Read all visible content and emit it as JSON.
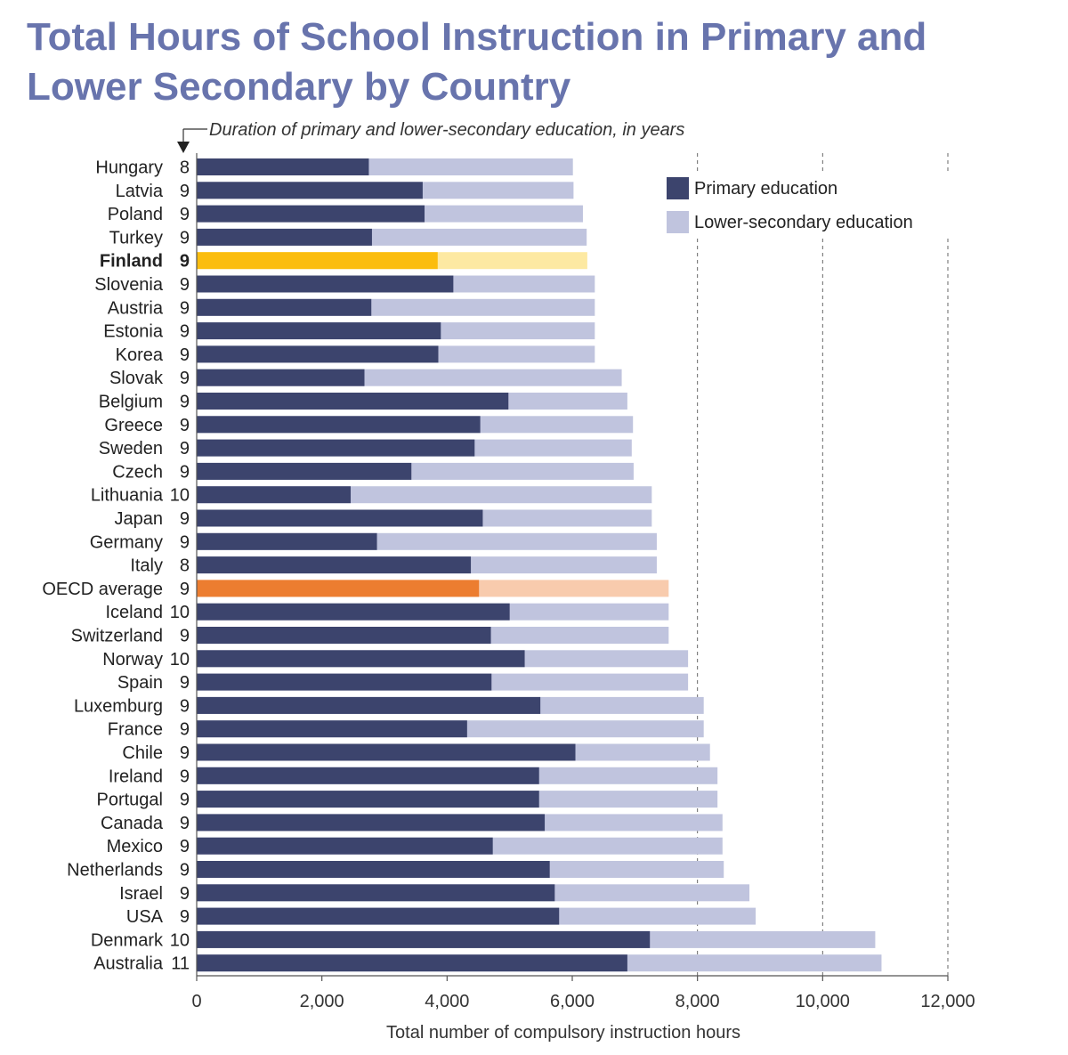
{
  "chart_data": {
    "type": "bar",
    "stacked": true,
    "orientation": "horizontal",
    "title": "Total Hours of School Instruction in Primary and Lower Secondary by Country",
    "subtitle": "Duration of primary and lower-secondary education, in years",
    "xlabel": "Total number of compulsory instruction hours",
    "ylabel": "",
    "xlim": [
      0,
      12000
    ],
    "x_ticks": [
      "0",
      "2,000",
      "4,000",
      "6,000",
      "8,000",
      "10,000",
      "12,000"
    ],
    "x_tick_values": [
      0,
      2000,
      4000,
      6000,
      8000,
      10000,
      12000
    ],
    "grid": "dashed vertical lines at 8,000, 10,000, 12,000",
    "legend_position": "top-right",
    "series": [
      {
        "name": "Primary education",
        "color": "#3c446d"
      },
      {
        "name": "Lower-secondary education",
        "color": "#c0c4de"
      }
    ],
    "highlight_colors": {
      "Finland": {
        "primary": "#fbbd0e",
        "lower_secondary": "#fde9a2"
      },
      "OECD average": {
        "primary": "#ec7d30",
        "lower_secondary": "#f8cbad"
      }
    },
    "categories": [
      {
        "country": "Hungary",
        "years": "8",
        "primary": 2750,
        "total": 6010
      },
      {
        "country": "Latvia",
        "years": "9",
        "primary": 3610,
        "total": 6020
      },
      {
        "country": "Poland",
        "years": "9",
        "primary": 3640,
        "total": 6170
      },
      {
        "country": "Turkey",
        "years": "9",
        "primary": 2800,
        "total": 6230
      },
      {
        "country": "Finland",
        "years": "9",
        "primary": 3850,
        "total": 6240,
        "bold": true
      },
      {
        "country": "Slovenia",
        "years": "9",
        "primary": 4100,
        "total": 6360
      },
      {
        "country": "Austria",
        "years": "9",
        "primary": 2790,
        "total": 6360
      },
      {
        "country": "Estonia",
        "years": "9",
        "primary": 3900,
        "total": 6360
      },
      {
        "country": "Korea",
        "years": "9",
        "primary": 3860,
        "total": 6360
      },
      {
        "country": "Slovak",
        "years": "9",
        "primary": 2680,
        "total": 6790
      },
      {
        "country": "Belgium",
        "years": "9",
        "primary": 4980,
        "total": 6880
      },
      {
        "country": "Greece",
        "years": "9",
        "primary": 4530,
        "total": 6970
      },
      {
        "country": "Sweden",
        "years": "9",
        "primary": 4440,
        "total": 6950
      },
      {
        "country": "Czech",
        "years": "9",
        "primary": 3430,
        "total": 6980
      },
      {
        "country": "Lithuania",
        "years": "10",
        "primary": 2460,
        "total": 7270
      },
      {
        "country": "Japan",
        "years": "9",
        "primary": 4570,
        "total": 7270
      },
      {
        "country": "Germany",
        "years": "9",
        "primary": 2880,
        "total": 7350
      },
      {
        "country": "Italy",
        "years": "8",
        "primary": 4380,
        "total": 7350
      },
      {
        "country": "OECD average",
        "years": "9",
        "primary": 4510,
        "total": 7540
      },
      {
        "country": "Iceland",
        "years": "10",
        "primary": 5000,
        "total": 7540
      },
      {
        "country": "Switzerland",
        "years": "9",
        "primary": 4700,
        "total": 7540
      },
      {
        "country": "Norway",
        "years": "10",
        "primary": 5240,
        "total": 7850
      },
      {
        "country": "Spain",
        "years": "9",
        "primary": 4710,
        "total": 7850
      },
      {
        "country": "Luxemburg",
        "years": "9",
        "primary": 5490,
        "total": 8100
      },
      {
        "country": "France",
        "years": "9",
        "primary": 4320,
        "total": 8100
      },
      {
        "country": "Chile",
        "years": "9",
        "primary": 6050,
        "total": 8200
      },
      {
        "country": "Ireland",
        "years": "9",
        "primary": 5470,
        "total": 8320
      },
      {
        "country": "Portugal",
        "years": "9",
        "primary": 5470,
        "total": 8320
      },
      {
        "country": "Canada",
        "years": "9",
        "primary": 5560,
        "total": 8400
      },
      {
        "country": "Mexico",
        "years": "9",
        "primary": 4730,
        "total": 8400
      },
      {
        "country": "Netherlands",
        "years": "9",
        "primary": 5640,
        "total": 8420
      },
      {
        "country": "Israel",
        "years": "9",
        "primary": 5720,
        "total": 8830
      },
      {
        "country": "USA",
        "years": "9",
        "primary": 5790,
        "total": 8930
      },
      {
        "country": "Denmark",
        "years": "10",
        "primary": 7240,
        "total": 10840
      },
      {
        "country": "Australia",
        "years": "11",
        "primary": 6880,
        "total": 10940
      }
    ]
  }
}
